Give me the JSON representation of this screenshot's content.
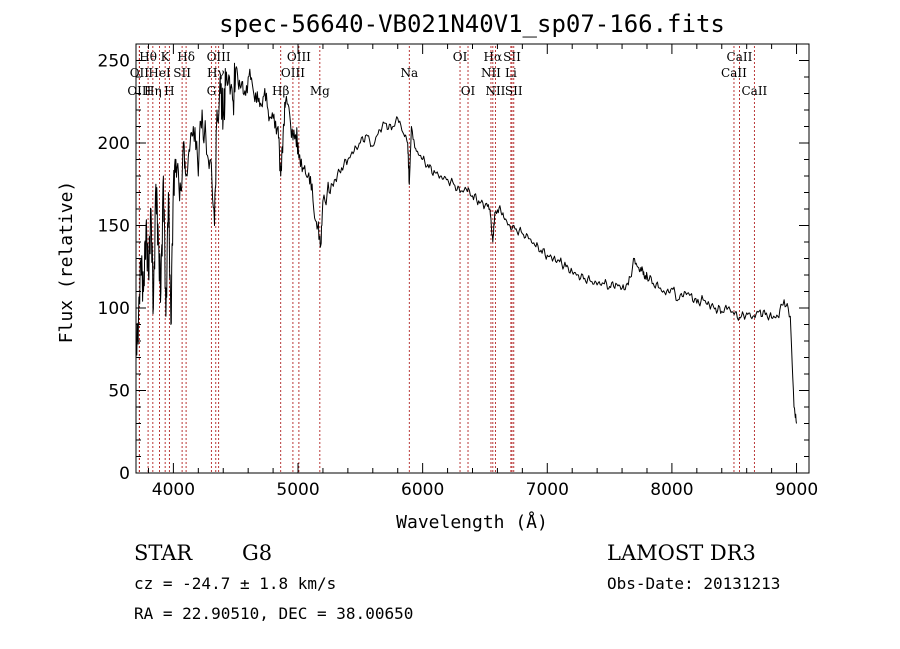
{
  "chart_data": {
    "type": "line",
    "title": "spec-56640-VB021N40V1_sp07-166.fits",
    "xlabel": "Wavelength (Å)",
    "ylabel": "Flux (relative)",
    "xlim": [
      3700,
      9100
    ],
    "ylim": [
      0,
      260
    ],
    "xticks": [
      4000,
      5000,
      6000,
      7000,
      8000,
      9000
    ],
    "yticks": [
      0,
      50,
      100,
      150,
      200,
      250
    ],
    "grid": false,
    "line_color": "#000000",
    "marker_color": "#b22222",
    "spectrum": {
      "x": [
        3700,
        3720,
        3740,
        3760,
        3780,
        3800,
        3820,
        3840,
        3860,
        3880,
        3900,
        3920,
        3940,
        3960,
        3980,
        4000,
        4020,
        4050,
        4080,
        4100,
        4130,
        4160,
        4200,
        4230,
        4260,
        4300,
        4330,
        4350,
        4380,
        4400,
        4420,
        4450,
        4480,
        4500,
        4530,
        4560,
        4600,
        4640,
        4680,
        4720,
        4760,
        4800,
        4840,
        4861,
        4880,
        4900,
        4940,
        4980,
        5000,
        5040,
        5080,
        5120,
        5160,
        5183,
        5200,
        5250,
        5300,
        5350,
        5400,
        5450,
        5500,
        5550,
        5600,
        5650,
        5700,
        5750,
        5800,
        5850,
        5880,
        5893,
        5910,
        5950,
        6000,
        6050,
        6100,
        6150,
        6200,
        6250,
        6300,
        6350,
        6400,
        6450,
        6500,
        6540,
        6563,
        6580,
        6620,
        6650,
        6700,
        6750,
        6800,
        6850,
        6900,
        6950,
        7000,
        7050,
        7100,
        7150,
        7200,
        7250,
        7300,
        7350,
        7400,
        7450,
        7500,
        7550,
        7600,
        7650,
        7700,
        7740,
        7760,
        7780,
        7800,
        7850,
        7900,
        7950,
        8000,
        8050,
        8100,
        8150,
        8200,
        8250,
        8300,
        8350,
        8400,
        8450,
        8500,
        8550,
        8600,
        8650,
        8700,
        8750,
        8800,
        8850,
        8900,
        8950,
        8980,
        9000
      ],
      "y": [
        70,
        95,
        130,
        110,
        150,
        120,
        160,
        100,
        175,
        140,
        110,
        180,
        95,
        170,
        90,
        175,
        190,
        165,
        200,
        180,
        195,
        210,
        180,
        220,
        205,
        190,
        150,
        220,
        230,
        215,
        235,
        240,
        225,
        245,
        238,
        230,
        240,
        232,
        225,
        228,
        220,
        215,
        210,
        180,
        205,
        225,
        212,
        205,
        200,
        185,
        180,
        165,
        150,
        138,
        165,
        170,
        178,
        185,
        190,
        195,
        200,
        205,
        198,
        208,
        212,
        208,
        215,
        205,
        200,
        175,
        210,
        195,
        190,
        185,
        182,
        180,
        178,
        175,
        170,
        172,
        168,
        165,
        162,
        160,
        140,
        158,
        162,
        155,
        150,
        148,
        145,
        142,
        138,
        135,
        132,
        130,
        128,
        125,
        122,
        120,
        118,
        116,
        114,
        115,
        113,
        115,
        112,
        114,
        130,
        122,
        125,
        118,
        120,
        115,
        112,
        108,
        112,
        105,
        110,
        108,
        103,
        105,
        102,
        100,
        98,
        100,
        96,
        94,
        97,
        95,
        98,
        96,
        94,
        95,
        105,
        95,
        40,
        30
      ]
    },
    "spectral_lines": [
      {
        "label": "Hθ",
        "x": 3797,
        "row": 1
      },
      {
        "label": "OII",
        "x": 3727,
        "row": 2
      },
      {
        "label": "OIII",
        "x": 3727,
        "row": 3
      },
      {
        "label": "K",
        "x": 3934,
        "row": 1
      },
      {
        "label": "HeI",
        "x": 3889,
        "row": 2
      },
      {
        "label": "Hη",
        "x": 3835,
        "row": 3
      },
      {
        "label": "SII",
        "x": 4070,
        "row": 2
      },
      {
        "label": "H",
        "x": 3968,
        "row": 3
      },
      {
        "label": "Hδ",
        "x": 4102,
        "row": 1
      },
      {
        "label": "OIII",
        "x": 4363,
        "row": 1
      },
      {
        "label": "Hγ",
        "x": 4340,
        "row": 2
      },
      {
        "label": "G",
        "x": 4305,
        "row": 3
      },
      {
        "label": "OIII",
        "x": 5007,
        "row": 1
      },
      {
        "label": "OIII",
        "x": 4959,
        "row": 2
      },
      {
        "label": "Hβ",
        "x": 4861,
        "row": 3
      },
      {
        "label": "Mg",
        "x": 5175,
        "row": 3
      },
      {
        "label": "Na",
        "x": 5893,
        "row": 2
      },
      {
        "label": "OI",
        "x": 6300,
        "row": 1
      },
      {
        "label": "OI",
        "x": 6364,
        "row": 3
      },
      {
        "label": "Hα",
        "x": 6563,
        "row": 1
      },
      {
        "label": "SII",
        "x": 6717,
        "row": 1
      },
      {
        "label": "NII",
        "x": 6548,
        "row": 2
      },
      {
        "label": "Li",
        "x": 6708,
        "row": 2
      },
      {
        "label": "NII",
        "x": 6584,
        "row": 3
      },
      {
        "label": "SII",
        "x": 6731,
        "row": 3
      },
      {
        "label": "CaII",
        "x": 8542,
        "row": 1
      },
      {
        "label": "CaII",
        "x": 8498,
        "row": 2
      },
      {
        "label": "CaII",
        "x": 8662,
        "row": 3
      }
    ]
  },
  "info": {
    "object_class": "STAR",
    "subclass": "G8",
    "survey": "LAMOST DR3",
    "redshift_text": "cz = -24.7 ± 1.8 km/s",
    "obs_date_text": "Obs-Date: 20131213",
    "coords_text": "RA =  22.90510, DEC =  38.00650"
  }
}
